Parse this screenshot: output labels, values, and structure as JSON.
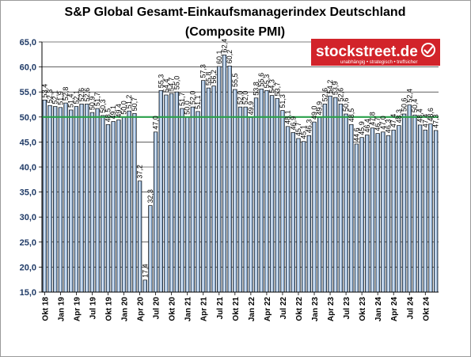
{
  "chart_data": {
    "type": "bar",
    "title": "S&P Global Gesamt-Einkaufsmanagerindex Deutschland",
    "subtitle": "(Composite PMI)",
    "xlabel": "",
    "ylabel": "",
    "ylim": [
      15,
      65
    ],
    "ytick_labels": [
      "15,0",
      "20,0",
      "25,0",
      "30,0",
      "35,0",
      "40,0",
      "45,0",
      "50,0",
      "55,0",
      "60,0",
      "65,0"
    ],
    "grid": true,
    "legend": "none",
    "reference_line": 50,
    "xtick_labels": [
      "Okt 18",
      "Jan 19",
      "Apr 19",
      "Jul 19",
      "Okt 19",
      "Jan 20",
      "Apr 20",
      "Jul 20",
      "Okt 20",
      "Jan 21",
      "Apr 21",
      "Jul 21",
      "Okt 21",
      "Jan 22",
      "Apr 22",
      "Jul 22",
      "Okt 22",
      "Jan 23",
      "Apr 23",
      "Jul 23",
      "Okt 23",
      "Jan 24",
      "Apr 24",
      "Jul 24",
      "Okt 24"
    ],
    "values": [
      53.4,
      52.3,
      52.1,
      51.9,
      52.8,
      51.4,
      52.1,
      52.6,
      52.6,
      50.9,
      51.7,
      50.3,
      48.5,
      49.1,
      49.4,
      50.0,
      51.2,
      50.7,
      37.2,
      17.4,
      32.3,
      47.0,
      55.3,
      54.4,
      54.7,
      55.0,
      51.7,
      50.0,
      52.0,
      51.1,
      57.3,
      55.8,
      56.2,
      60.1,
      62.4,
      60.2,
      55.5,
      52.0,
      52.0,
      49.9,
      53.8,
      55.6,
      55.3,
      54.3,
      53.7,
      51.3,
      48.1,
      46.9,
      45.7,
      45.1,
      46.3,
      49.0,
      49.9,
      52.6,
      54.2,
      53.9,
      52.6,
      50.6,
      48.5,
      44.6,
      45.9,
      46.4,
      47.8,
      46.7,
      47.0,
      46.3,
      47.4,
      48.3,
      50.6,
      52.4,
      50.4,
      48.4,
      47.4,
      48.6,
      47.3
    ],
    "colors": {
      "bar_fill": "#4f7fb4",
      "bar_highlight": "#e9f1fb",
      "bar_edge": "#0d0d0d",
      "reference_line": "#2aa14a",
      "grid": "#000000",
      "brand": "#d2232a"
    }
  },
  "logo": {
    "name": "stockstreet.de",
    "tagline": "unabhängig • strategisch • treffsicher",
    "icon": "checkmark-icon"
  }
}
